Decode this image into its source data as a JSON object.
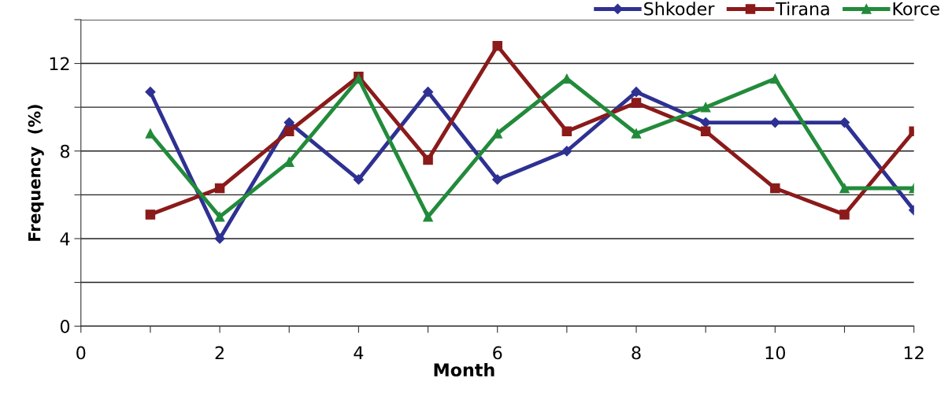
{
  "chart_data": {
    "type": "line",
    "xlabel": "Month",
    "ylabel": "Frequency  (%)",
    "x": [
      1,
      2,
      3,
      4,
      5,
      6,
      7,
      8,
      9,
      10,
      11,
      12
    ],
    "series": [
      {
        "name": "Shkoder",
        "color": "#2e3192",
        "marker": "diamond",
        "values": [
          10.7,
          4.0,
          9.3,
          6.7,
          10.7,
          6.7,
          8.0,
          10.7,
          9.3,
          9.3,
          9.3,
          5.3
        ]
      },
      {
        "name": "Tirana",
        "color": "#8b1a1a",
        "marker": "square",
        "values": [
          5.1,
          6.3,
          8.9,
          11.4,
          7.6,
          12.8,
          8.9,
          10.2,
          8.9,
          6.3,
          5.1,
          8.9
        ]
      },
      {
        "name": "Korce",
        "color": "#228b3b",
        "marker": "triangle",
        "values": [
          8.8,
          5.0,
          7.5,
          11.3,
          5.0,
          8.8,
          11.3,
          8.8,
          10.0,
          11.3,
          6.3,
          6.3
        ]
      }
    ],
    "xlim": [
      0,
      12
    ],
    "ylim": [
      0,
      14
    ],
    "xticks": [
      0,
      {
        "value": 1,
        "label": null
      },
      2,
      {
        "value": 3,
        "label": null
      },
      4,
      {
        "value": 5,
        "label": null
      },
      6,
      {
        "value": 7,
        "label": null
      },
      8,
      {
        "value": 9,
        "label": null
      },
      10,
      {
        "value": 11,
        "label": null
      },
      12
    ],
    "yticks": [
      0,
      {
        "value": 2,
        "label": null
      },
      4,
      {
        "value": 6,
        "label": null
      },
      8,
      {
        "value": 10,
        "label": null
      },
      12,
      {
        "value": 14,
        "label": null
      }
    ],
    "grid": "y",
    "legend": "top right",
    "line_style": "solid"
  }
}
